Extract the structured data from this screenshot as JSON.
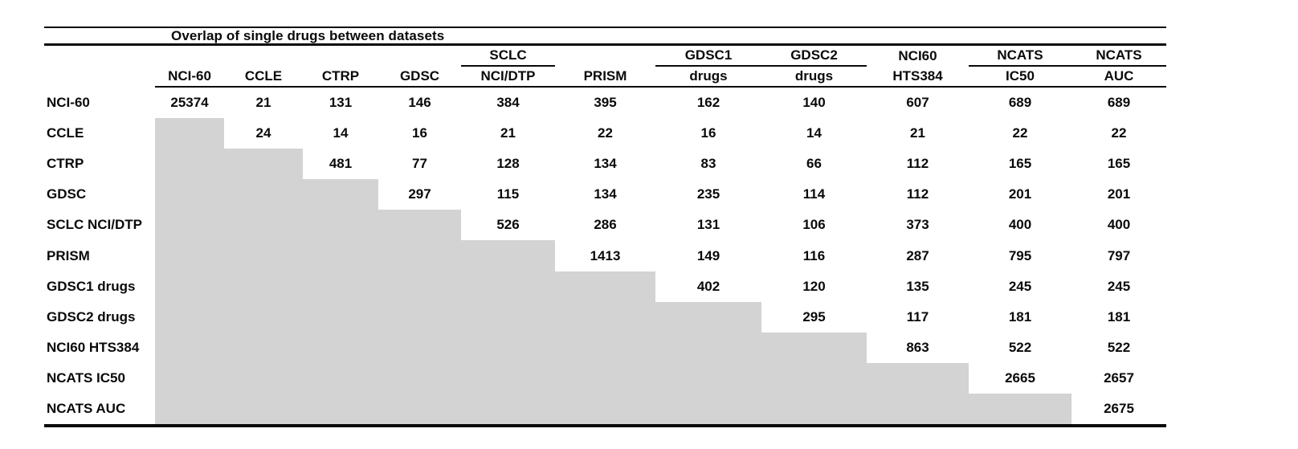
{
  "table": {
    "title": "Overlap of single drugs between datasets",
    "shaded_color": "#d3d3d3",
    "rule_color": "#0a0a0a",
    "columns": [
      {
        "top": "",
        "label": "NCI-60",
        "top_underline": false
      },
      {
        "top": "",
        "label": "CCLE",
        "top_underline": false
      },
      {
        "top": "",
        "label": "CTRP",
        "top_underline": false
      },
      {
        "top": "",
        "label": "GDSC",
        "top_underline": false
      },
      {
        "top": "SCLC",
        "label": "NCI/DTP",
        "top_underline": true
      },
      {
        "top": "",
        "label": "PRISM",
        "top_underline": false
      },
      {
        "top": "GDSC1",
        "label": "drugs",
        "top_underline": true
      },
      {
        "top": "GDSC2",
        "label": "drugs",
        "top_underline": true
      },
      {
        "top": "NCI60",
        "label": "HTS384",
        "top_underline": false
      },
      {
        "top": "NCATS",
        "label": "IC50",
        "top_underline": true
      },
      {
        "top": "NCATS",
        "label": "AUC",
        "top_underline": true
      }
    ],
    "rows": [
      {
        "label": "NCI-60",
        "values": [
          "25374",
          "21",
          "131",
          "146",
          "384",
          "395",
          "162",
          "140",
          "607",
          "689",
          "689"
        ]
      },
      {
        "label": "CCLE",
        "values": [
          null,
          "24",
          "14",
          "16",
          "21",
          "22",
          "16",
          "14",
          "21",
          "22",
          "22"
        ]
      },
      {
        "label": "CTRP",
        "values": [
          null,
          null,
          "481",
          "77",
          "128",
          "134",
          "83",
          "66",
          "112",
          "165",
          "165"
        ]
      },
      {
        "label": "GDSC",
        "values": [
          null,
          null,
          null,
          "297",
          "115",
          "134",
          "235",
          "114",
          "112",
          "201",
          "201"
        ]
      },
      {
        "label": "SCLC NCI/DTP",
        "values": [
          null,
          null,
          null,
          null,
          "526",
          "286",
          "131",
          "106",
          "373",
          "400",
          "400"
        ]
      },
      {
        "label": "PRISM",
        "values": [
          null,
          null,
          null,
          null,
          null,
          "1413",
          "149",
          "116",
          "287",
          "795",
          "797"
        ]
      },
      {
        "label": "GDSC1 drugs",
        "values": [
          null,
          null,
          null,
          null,
          null,
          null,
          "402",
          "120",
          "135",
          "245",
          "245"
        ]
      },
      {
        "label": "GDSC2 drugs",
        "values": [
          null,
          null,
          null,
          null,
          null,
          null,
          null,
          "295",
          "117",
          "181",
          "181"
        ]
      },
      {
        "label": "NCI60 HTS384",
        "values": [
          null,
          null,
          null,
          null,
          null,
          null,
          null,
          null,
          "863",
          "522",
          "522"
        ]
      },
      {
        "label": "NCATS IC50",
        "values": [
          null,
          null,
          null,
          null,
          null,
          null,
          null,
          null,
          null,
          "2665",
          "2657"
        ]
      },
      {
        "label": "NCATS AUC",
        "values": [
          null,
          null,
          null,
          null,
          null,
          null,
          null,
          null,
          null,
          null,
          "2675"
        ]
      }
    ]
  }
}
